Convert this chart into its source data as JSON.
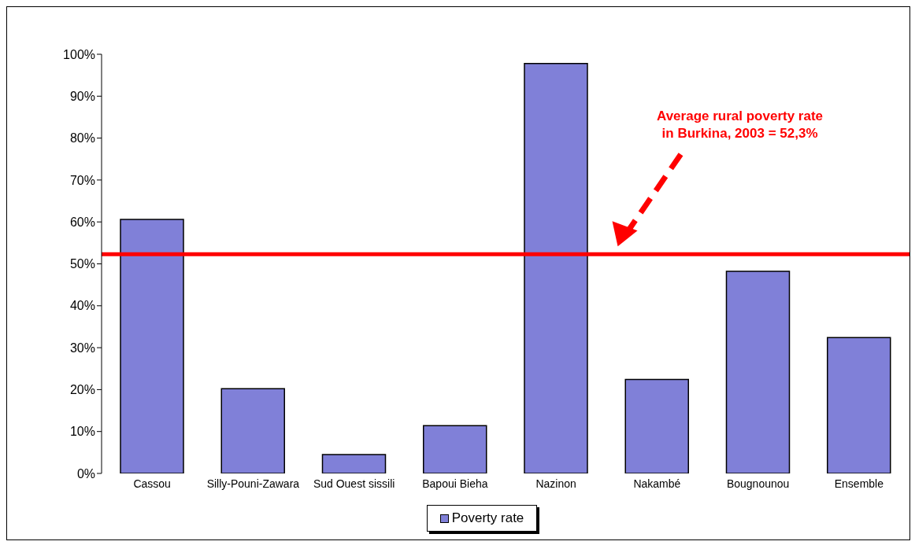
{
  "chart_data": {
    "type": "bar",
    "categories": [
      "Cassou",
      "Silly-Pouni-Zawara",
      "Sud Ouest sissili",
      "Bapoui Bieha",
      "Nazinon",
      "Nakambé",
      "Bougnounou",
      "Ensemble"
    ],
    "series": [
      {
        "name": "Poverty rate",
        "color": "#8080d8",
        "values": [
          60.6,
          20.2,
          4.5,
          11.4,
          97.8,
          22.4,
          48.2,
          32.4
        ]
      }
    ],
    "ylim": [
      0,
      100
    ],
    "yticks": [
      {
        "value": 0,
        "label": "0%"
      },
      {
        "value": 10,
        "label": "10%"
      },
      {
        "value": 20,
        "label": "20%"
      },
      {
        "value": 30,
        "label": "30%"
      },
      {
        "value": 40,
        "label": "40%"
      },
      {
        "value": 50,
        "label": "50%"
      },
      {
        "value": 60,
        "label": "60%"
      },
      {
        "value": 70,
        "label": "70%"
      },
      {
        "value": 80,
        "label": "80%"
      },
      {
        "value": 90,
        "label": "90%"
      },
      {
        "value": 100,
        "label": "100%"
      }
    ],
    "ref_lines": [
      {
        "axis": "y",
        "value": 52.3,
        "label": "Average rural poverty rate in Burkina, 2003 = 52,3%",
        "color": "#ff0000",
        "line_style": "solid"
      }
    ],
    "grid": false,
    "legend": "bottom"
  }
}
